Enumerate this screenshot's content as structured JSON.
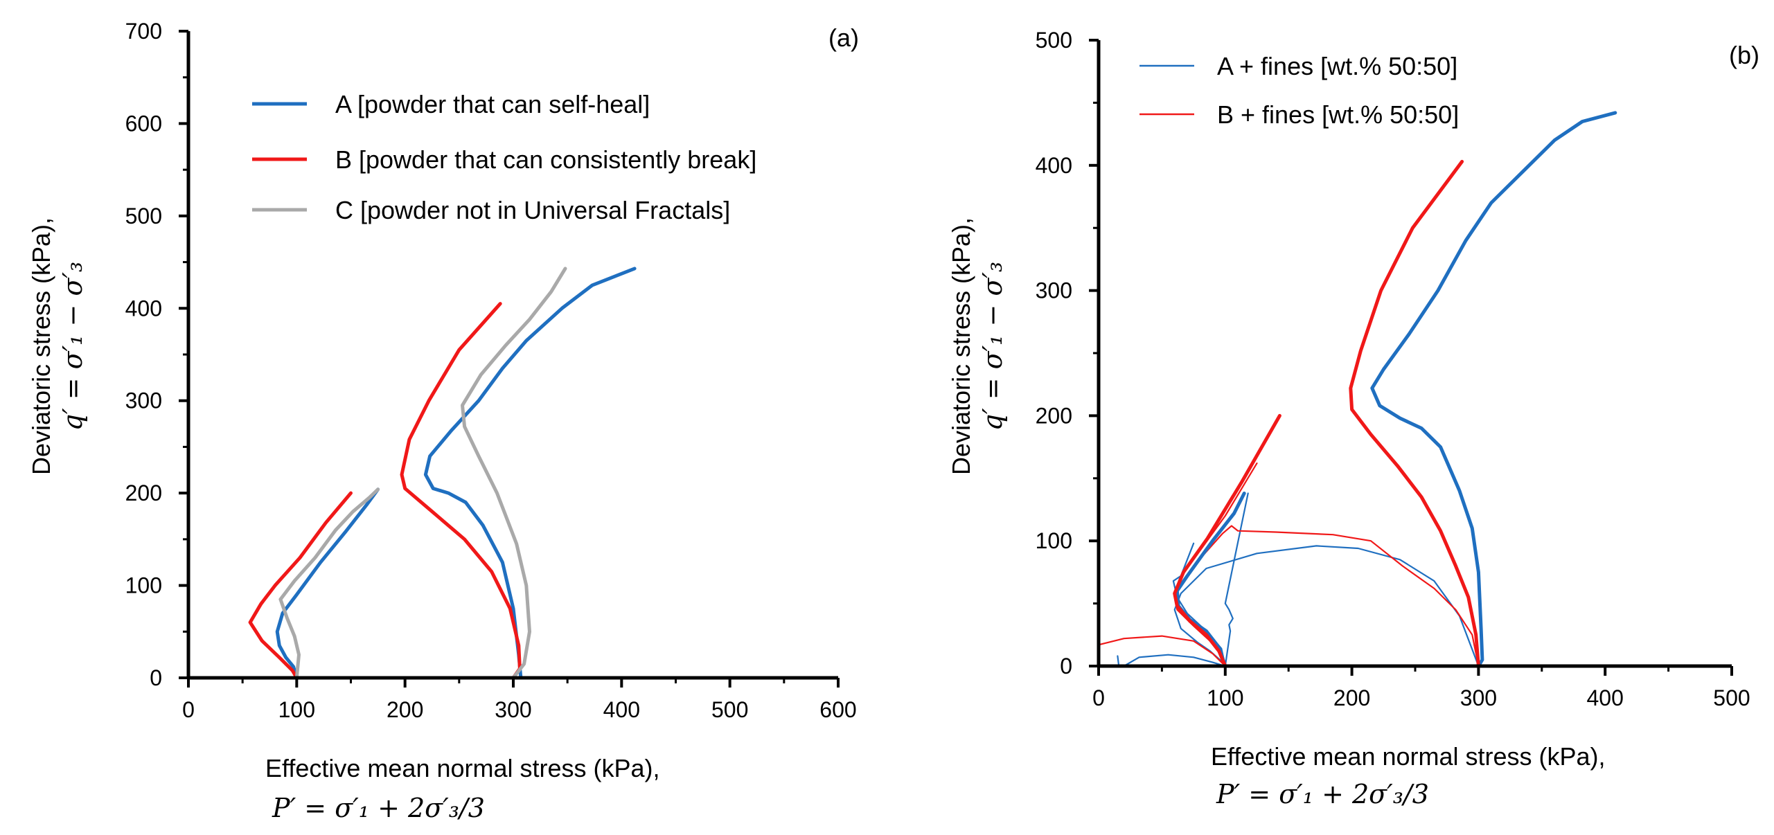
{
  "chart_data": [
    {
      "type": "line",
      "panel_label": "(a)",
      "xlabel": "Effective mean normal stress (kPa),",
      "xformula": "P′ = σ′₁ + 2σ′₃/3",
      "ylabel": "Deviatoric stress (kPa),",
      "yformula": "q′ = σ′₁ − σ′₃",
      "xlim": [
        0,
        600
      ],
      "ylim": [
        0,
        700
      ],
      "xticks": [
        0,
        100,
        200,
        300,
        400,
        500,
        600
      ],
      "yticks": [
        0,
        100,
        200,
        300,
        400,
        500,
        600,
        700
      ],
      "legend_position": "top-left",
      "colors": {
        "A": "#1f6fc0",
        "B": "#f01818",
        "C": "#a9a9a9"
      },
      "series": [
        {
          "key": "A",
          "name": "A [powder that can self-heal]",
          "color": "#1f6fc0",
          "width": 5,
          "segments": [
            [
              [
                100,
                0
              ],
              [
                97,
                12
              ],
              [
                90,
                22
              ],
              [
                84,
                35
              ],
              [
                82,
                50
              ],
              [
                87,
                70
              ],
              [
                100,
                90
              ],
              [
                122,
                125
              ],
              [
                145,
                158
              ],
              [
                165,
                188
              ],
              [
                175,
                204
              ]
            ],
            [
              [
                307,
                0
              ],
              [
                305,
                25
              ],
              [
                300,
                75
              ],
              [
                290,
                125
              ],
              [
                272,
                165
              ],
              [
                256,
                190
              ],
              [
                240,
                200
              ],
              [
                226,
                205
              ],
              [
                219,
                220
              ],
              [
                223,
                240
              ],
              [
                243,
                268
              ],
              [
                268,
                300
              ],
              [
                290,
                335
              ],
              [
                312,
                365
              ],
              [
                345,
                400
              ],
              [
                373,
                425
              ],
              [
                412,
                443
              ]
            ]
          ]
        },
        {
          "key": "B",
          "name": "B [powder that can consistently break]",
          "color": "#f01818",
          "width": 5,
          "segments": [
            [
              [
                100,
                0
              ],
              [
                96,
                8
              ],
              [
                84,
                22
              ],
              [
                68,
                40
              ],
              [
                57,
                60
              ],
              [
                67,
                80
              ],
              [
                80,
                100
              ],
              [
                103,
                130
              ],
              [
                127,
                168
              ],
              [
                150,
                200
              ]
            ],
            [
              [
                300,
                0
              ],
              [
                306,
                10
              ],
              [
                305,
                35
              ],
              [
                297,
                75
              ],
              [
                280,
                115
              ],
              [
                255,
                150
              ],
              [
                225,
                180
              ],
              [
                200,
                205
              ],
              [
                197,
                220
              ],
              [
                204,
                258
              ],
              [
                222,
                300
              ],
              [
                250,
                355
              ],
              [
                288,
                405
              ]
            ]
          ]
        },
        {
          "key": "C",
          "name": "C [powder not in Universal Fractals]",
          "color": "#a9a9a9",
          "width": 5,
          "segments": [
            [
              [
                100,
                0
              ],
              [
                102,
                25
              ],
              [
                98,
                45
              ],
              [
                91,
                65
              ],
              [
                85,
                85
              ],
              [
                98,
                105
              ],
              [
                117,
                130
              ],
              [
                136,
                160
              ],
              [
                152,
                180
              ],
              [
                167,
                195
              ],
              [
                175,
                204
              ]
            ],
            [
              [
                300,
                0
              ],
              [
                310,
                15
              ],
              [
                315,
                50
              ],
              [
                312,
                100
              ],
              [
                303,
                145
              ],
              [
                285,
                200
              ],
              [
                268,
                240
              ],
              [
                255,
                272
              ],
              [
                253,
                295
              ],
              [
                270,
                328
              ],
              [
                293,
                360
              ],
              [
                315,
                388
              ],
              [
                335,
                418
              ],
              [
                348,
                443
              ]
            ]
          ]
        }
      ]
    },
    {
      "type": "line",
      "panel_label": "(b)",
      "xlabel": "Effective mean normal stress (kPa),",
      "xformula": "P′ = σ′₁ + 2σ′₃/3",
      "ylabel": "Deviatoric stress (kPa),",
      "yformula": "q′ = σ′₁ − σ′₃",
      "xlim": [
        0,
        500
      ],
      "ylim": [
        0,
        500
      ],
      "xticks": [
        0,
        100,
        200,
        300,
        400,
        500
      ],
      "yticks": [
        0,
        100,
        200,
        300,
        400,
        500
      ],
      "legend_position": "top-left",
      "series": [
        {
          "key": "A_fines",
          "name": "A + fines [wt.% 50:50]",
          "color": "#1f6fc0",
          "width": 2.2,
          "segments": [
            [
              [
                15,
                8
              ],
              [
                16,
                0
              ],
              [
                20,
                0
              ],
              [
                32,
                7
              ],
              [
                55,
                9
              ],
              [
                75,
                7
              ],
              [
                90,
                3
              ],
              [
                100,
                0
              ]
            ],
            [
              [
                100,
                0
              ],
              [
                97,
                14
              ],
              [
                85,
                28
              ],
              [
                70,
                42
              ],
              [
                62,
                55
              ],
              [
                59,
                68
              ],
              [
                65,
                72
              ],
              [
                75,
                98
              ]
            ],
            [
              [
                100,
                0
              ],
              [
                98,
                3
              ],
              [
                88,
                12
              ],
              [
                78,
                19
              ],
              [
                65,
                30
              ],
              [
                60,
                45
              ],
              [
                65,
                58
              ],
              [
                85,
                78
              ],
              [
                125,
                90
              ],
              [
                172,
                96
              ],
              [
                205,
                94
              ],
              [
                238,
                85
              ],
              [
                265,
                68
              ],
              [
                285,
                40
              ],
              [
                300,
                0
              ]
            ],
            [
              [
                100,
                0
              ],
              [
                104,
                28
              ],
              [
                103,
                33
              ],
              [
                106,
                38
              ],
              [
                103,
                45
              ],
              [
                100,
                50
              ],
              [
                118,
                138
              ]
            ]
          ]
        },
        {
          "key": "B_fines",
          "name": "B + fines [wt.% 50:50]",
          "color": "#f01818",
          "width": 2.2,
          "segments": [
            [
              [
                0,
                17
              ],
              [
                20,
                22
              ],
              [
                50,
                24
              ],
              [
                75,
                20
              ],
              [
                90,
                10
              ],
              [
                100,
                0
              ]
            ],
            [
              [
                100,
                0
              ],
              [
                96,
                10
              ],
              [
                88,
                20
              ],
              [
                75,
                32
              ],
              [
                62,
                45
              ],
              [
                60,
                58
              ],
              [
                64,
                70
              ],
              [
                82,
                95
              ],
              [
                100,
                120
              ],
              [
                125,
                162
              ]
            ],
            [
              [
                300,
                0
              ],
              [
                295,
                25
              ],
              [
                282,
                45
              ],
              [
                265,
                62
              ],
              [
                240,
                80
              ],
              [
                215,
                100
              ],
              [
                185,
                105
              ],
              [
                140,
                107
              ],
              [
                110,
                108
              ],
              [
                105,
                112
              ],
              [
                98,
                106
              ],
              [
                75,
                80
              ],
              [
                62,
                62
              ]
            ]
          ]
        },
        {
          "key": "A_thick",
          "name": "",
          "color": "#1f6fc0",
          "width": 5,
          "segments": [
            [
              [
                100,
                0
              ],
              [
                95,
                15
              ],
              [
                85,
                28
              ],
              [
                72,
                37
              ],
              [
                63,
                48
              ],
              [
                62,
                60
              ],
              [
                70,
                72
              ],
              [
                90,
                100
              ],
              [
                107,
                122
              ],
              [
                115,
                138
              ]
            ],
            [
              [
                300,
                0
              ],
              [
                303,
                5
              ],
              [
                302,
                30
              ],
              [
                300,
                75
              ],
              [
                295,
                110
              ],
              [
                285,
                140
              ],
              [
                270,
                175
              ],
              [
                255,
                190
              ],
              [
                238,
                198
              ],
              [
                222,
                208
              ],
              [
                216,
                222
              ],
              [
                225,
                237
              ],
              [
                245,
                265
              ],
              [
                268,
                300
              ],
              [
                290,
                340
              ],
              [
                310,
                370
              ],
              [
                335,
                395
              ],
              [
                360,
                420
              ],
              [
                382,
                435
              ],
              [
                408,
                442
              ]
            ]
          ]
        },
        {
          "key": "B_thick",
          "name": "",
          "color": "#f01818",
          "width": 5,
          "segments": [
            [
              [
                100,
                0
              ],
              [
                95,
                12
              ],
              [
                85,
                25
              ],
              [
                72,
                36
              ],
              [
                62,
                48
              ],
              [
                60,
                58
              ],
              [
                67,
                75
              ],
              [
                86,
                102
              ],
              [
                113,
                147
              ],
              [
                143,
                200
              ]
            ],
            [
              [
                300,
                0
              ],
              [
                298,
                25
              ],
              [
                292,
                55
              ],
              [
                282,
                80
              ],
              [
                270,
                108
              ],
              [
                255,
                135
              ],
              [
                236,
                160
              ],
              [
                215,
                185
              ],
              [
                200,
                205
              ],
              [
                199,
                222
              ],
              [
                207,
                252
              ],
              [
                223,
                300
              ],
              [
                248,
                350
              ],
              [
                287,
                403
              ]
            ]
          ]
        }
      ]
    }
  ]
}
